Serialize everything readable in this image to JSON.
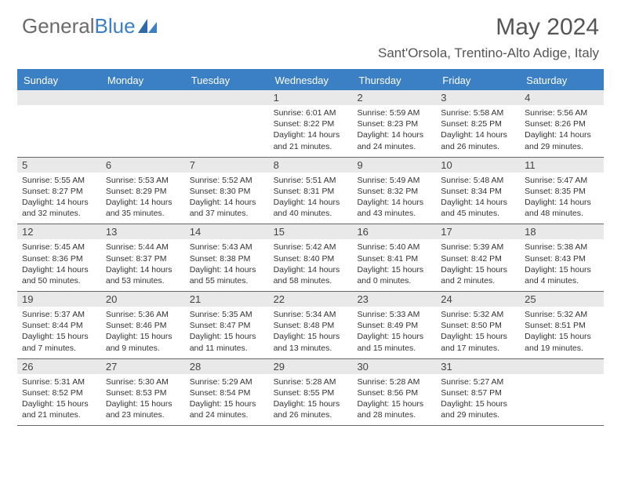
{
  "logo": {
    "text_gray": "General",
    "text_blue": "Blue"
  },
  "title": "May 2024",
  "location": "Sant'Orsola, Trentino-Alto Adige, Italy",
  "colors": {
    "header_bg": "#3b7fc4",
    "header_text": "#ffffff",
    "daynum_bg": "#e9e9e9",
    "border": "#666666",
    "page_bg": "#ffffff",
    "body_text": "#333333",
    "title_text": "#555555"
  },
  "typography": {
    "month_title_size": 30,
    "location_size": 17,
    "dayhead_size": 13,
    "daynum_size": 13,
    "info_size": 10.5
  },
  "layout": {
    "columns": 7,
    "rows": 5
  },
  "day_headers": [
    "Sunday",
    "Monday",
    "Tuesday",
    "Wednesday",
    "Thursday",
    "Friday",
    "Saturday"
  ],
  "weeks": [
    [
      {
        "blank": true
      },
      {
        "blank": true
      },
      {
        "blank": true
      },
      {
        "day": "1",
        "sunrise": "Sunrise: 6:01 AM",
        "sunset": "Sunset: 8:22 PM",
        "daylight1": "Daylight: 14 hours",
        "daylight2": "and 21 minutes."
      },
      {
        "day": "2",
        "sunrise": "Sunrise: 5:59 AM",
        "sunset": "Sunset: 8:23 PM",
        "daylight1": "Daylight: 14 hours",
        "daylight2": "and 24 minutes."
      },
      {
        "day": "3",
        "sunrise": "Sunrise: 5:58 AM",
        "sunset": "Sunset: 8:25 PM",
        "daylight1": "Daylight: 14 hours",
        "daylight2": "and 26 minutes."
      },
      {
        "day": "4",
        "sunrise": "Sunrise: 5:56 AM",
        "sunset": "Sunset: 8:26 PM",
        "daylight1": "Daylight: 14 hours",
        "daylight2": "and 29 minutes."
      }
    ],
    [
      {
        "day": "5",
        "sunrise": "Sunrise: 5:55 AM",
        "sunset": "Sunset: 8:27 PM",
        "daylight1": "Daylight: 14 hours",
        "daylight2": "and 32 minutes."
      },
      {
        "day": "6",
        "sunrise": "Sunrise: 5:53 AM",
        "sunset": "Sunset: 8:29 PM",
        "daylight1": "Daylight: 14 hours",
        "daylight2": "and 35 minutes."
      },
      {
        "day": "7",
        "sunrise": "Sunrise: 5:52 AM",
        "sunset": "Sunset: 8:30 PM",
        "daylight1": "Daylight: 14 hours",
        "daylight2": "and 37 minutes."
      },
      {
        "day": "8",
        "sunrise": "Sunrise: 5:51 AM",
        "sunset": "Sunset: 8:31 PM",
        "daylight1": "Daylight: 14 hours",
        "daylight2": "and 40 minutes."
      },
      {
        "day": "9",
        "sunrise": "Sunrise: 5:49 AM",
        "sunset": "Sunset: 8:32 PM",
        "daylight1": "Daylight: 14 hours",
        "daylight2": "and 43 minutes."
      },
      {
        "day": "10",
        "sunrise": "Sunrise: 5:48 AM",
        "sunset": "Sunset: 8:34 PM",
        "daylight1": "Daylight: 14 hours",
        "daylight2": "and 45 minutes."
      },
      {
        "day": "11",
        "sunrise": "Sunrise: 5:47 AM",
        "sunset": "Sunset: 8:35 PM",
        "daylight1": "Daylight: 14 hours",
        "daylight2": "and 48 minutes."
      }
    ],
    [
      {
        "day": "12",
        "sunrise": "Sunrise: 5:45 AM",
        "sunset": "Sunset: 8:36 PM",
        "daylight1": "Daylight: 14 hours",
        "daylight2": "and 50 minutes."
      },
      {
        "day": "13",
        "sunrise": "Sunrise: 5:44 AM",
        "sunset": "Sunset: 8:37 PM",
        "daylight1": "Daylight: 14 hours",
        "daylight2": "and 53 minutes."
      },
      {
        "day": "14",
        "sunrise": "Sunrise: 5:43 AM",
        "sunset": "Sunset: 8:38 PM",
        "daylight1": "Daylight: 14 hours",
        "daylight2": "and 55 minutes."
      },
      {
        "day": "15",
        "sunrise": "Sunrise: 5:42 AM",
        "sunset": "Sunset: 8:40 PM",
        "daylight1": "Daylight: 14 hours",
        "daylight2": "and 58 minutes."
      },
      {
        "day": "16",
        "sunrise": "Sunrise: 5:40 AM",
        "sunset": "Sunset: 8:41 PM",
        "daylight1": "Daylight: 15 hours",
        "daylight2": "and 0 minutes."
      },
      {
        "day": "17",
        "sunrise": "Sunrise: 5:39 AM",
        "sunset": "Sunset: 8:42 PM",
        "daylight1": "Daylight: 15 hours",
        "daylight2": "and 2 minutes."
      },
      {
        "day": "18",
        "sunrise": "Sunrise: 5:38 AM",
        "sunset": "Sunset: 8:43 PM",
        "daylight1": "Daylight: 15 hours",
        "daylight2": "and 4 minutes."
      }
    ],
    [
      {
        "day": "19",
        "sunrise": "Sunrise: 5:37 AM",
        "sunset": "Sunset: 8:44 PM",
        "daylight1": "Daylight: 15 hours",
        "daylight2": "and 7 minutes."
      },
      {
        "day": "20",
        "sunrise": "Sunrise: 5:36 AM",
        "sunset": "Sunset: 8:46 PM",
        "daylight1": "Daylight: 15 hours",
        "daylight2": "and 9 minutes."
      },
      {
        "day": "21",
        "sunrise": "Sunrise: 5:35 AM",
        "sunset": "Sunset: 8:47 PM",
        "daylight1": "Daylight: 15 hours",
        "daylight2": "and 11 minutes."
      },
      {
        "day": "22",
        "sunrise": "Sunrise: 5:34 AM",
        "sunset": "Sunset: 8:48 PM",
        "daylight1": "Daylight: 15 hours",
        "daylight2": "and 13 minutes."
      },
      {
        "day": "23",
        "sunrise": "Sunrise: 5:33 AM",
        "sunset": "Sunset: 8:49 PM",
        "daylight1": "Daylight: 15 hours",
        "daylight2": "and 15 minutes."
      },
      {
        "day": "24",
        "sunrise": "Sunrise: 5:32 AM",
        "sunset": "Sunset: 8:50 PM",
        "daylight1": "Daylight: 15 hours",
        "daylight2": "and 17 minutes."
      },
      {
        "day": "25",
        "sunrise": "Sunrise: 5:32 AM",
        "sunset": "Sunset: 8:51 PM",
        "daylight1": "Daylight: 15 hours",
        "daylight2": "and 19 minutes."
      }
    ],
    [
      {
        "day": "26",
        "sunrise": "Sunrise: 5:31 AM",
        "sunset": "Sunset: 8:52 PM",
        "daylight1": "Daylight: 15 hours",
        "daylight2": "and 21 minutes."
      },
      {
        "day": "27",
        "sunrise": "Sunrise: 5:30 AM",
        "sunset": "Sunset: 8:53 PM",
        "daylight1": "Daylight: 15 hours",
        "daylight2": "and 23 minutes."
      },
      {
        "day": "28",
        "sunrise": "Sunrise: 5:29 AM",
        "sunset": "Sunset: 8:54 PM",
        "daylight1": "Daylight: 15 hours",
        "daylight2": "and 24 minutes."
      },
      {
        "day": "29",
        "sunrise": "Sunrise: 5:28 AM",
        "sunset": "Sunset: 8:55 PM",
        "daylight1": "Daylight: 15 hours",
        "daylight2": "and 26 minutes."
      },
      {
        "day": "30",
        "sunrise": "Sunrise: 5:28 AM",
        "sunset": "Sunset: 8:56 PM",
        "daylight1": "Daylight: 15 hours",
        "daylight2": "and 28 minutes."
      },
      {
        "day": "31",
        "sunrise": "Sunrise: 5:27 AM",
        "sunset": "Sunset: 8:57 PM",
        "daylight1": "Daylight: 15 hours",
        "daylight2": "and 29 minutes."
      },
      {
        "blank": true
      }
    ]
  ]
}
